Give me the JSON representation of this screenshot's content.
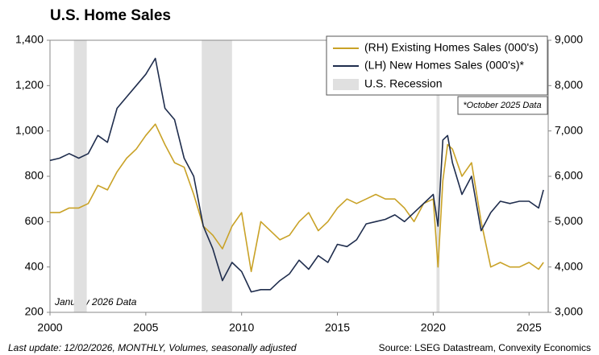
{
  "chart_data": {
    "type": "line",
    "title": "U.S. Home Sales",
    "x": [
      2000,
      2000.5,
      2001,
      2001.5,
      2002,
      2002.5,
      2003,
      2003.5,
      2004,
      2004.5,
      2005,
      2005.5,
      2006,
      2006.5,
      2007,
      2007.5,
      2008,
      2008.5,
      2009,
      2009.5,
      2010,
      2010.5,
      2011,
      2011.5,
      2012,
      2012.5,
      2013,
      2013.5,
      2014,
      2014.5,
      2015,
      2015.5,
      2016,
      2016.5,
      2017,
      2017.5,
      2018,
      2018.5,
      2019,
      2019.5,
      2020,
      2020.25,
      2020.5,
      2020.75,
      2021,
      2021.5,
      2022,
      2022.5,
      2023,
      2023.5,
      2024,
      2024.5,
      2025,
      2025.5,
      2025.75
    ],
    "series": [
      {
        "name": "(RH) Existing Homes Sales (000's)",
        "color": "#c9a227",
        "axis": "y2",
        "values": [
          5200,
          5200,
          5300,
          5300,
          5400,
          5800,
          5700,
          6100,
          6400,
          6600,
          6900,
          7150,
          6700,
          6300,
          6200,
          5600,
          4900,
          4700,
          4400,
          4900,
          5200,
          3900,
          5000,
          4800,
          4600,
          4700,
          5000,
          5200,
          4800,
          5000,
          5300,
          5500,
          5400,
          5500,
          5600,
          5500,
          5500,
          5300,
          5000,
          5400,
          5500,
          4000,
          5900,
          6700,
          6600,
          6000,
          6300,
          5000,
          4000,
          4100,
          4000,
          4000,
          4100,
          3950,
          4100
        ]
      },
      {
        "name": "(LH) New Homes Sales (000's)*",
        "color": "#1f2d4d",
        "values": [
          870,
          880,
          900,
          880,
          900,
          980,
          950,
          1100,
          1150,
          1200,
          1250,
          1320,
          1100,
          1050,
          880,
          800,
          580,
          480,
          340,
          420,
          380,
          290,
          300,
          300,
          340,
          370,
          430,
          390,
          450,
          420,
          500,
          490,
          520,
          590,
          600,
          610,
          630,
          600,
          640,
          680,
          720,
          580,
          960,
          980,
          860,
          720,
          800,
          560,
          640,
          690,
          680,
          690,
          690,
          660,
          740
        ]
      }
    ],
    "recessions": {
      "name": "U.S. Recession",
      "color": "#e0e0e0",
      "periods": [
        [
          2001.25,
          2001.92
        ],
        [
          2007.92,
          2009.5
        ],
        [
          2020.17,
          2020.33
        ]
      ]
    },
    "xlim": [
      2000,
      2026
    ],
    "xticks": [
      2000,
      2005,
      2010,
      2015,
      2020,
      2025
    ],
    "ylim": [
      200,
      1400
    ],
    "yticks": [
      200,
      400,
      600,
      800,
      {
        "value": 1000,
        "label": "1,000"
      },
      {
        "value": 1200,
        "label": "1,200"
      },
      {
        "value": 1400,
        "label": "1,400"
      }
    ],
    "y2lim": [
      3000,
      9000
    ],
    "y2ticks": [
      {
        "value": 3000,
        "label": "3,000"
      },
      {
        "value": 4000,
        "label": "4,000"
      },
      {
        "value": 5000,
        "label": "5,000"
      },
      {
        "value": 6000,
        "label": "6,000"
      },
      {
        "value": 7000,
        "label": "7,000"
      },
      {
        "value": 8000,
        "label": "8,000"
      },
      {
        "value": 9000,
        "label": "9,000"
      }
    ],
    "annotations": [
      "*October 2025 Data",
      "January 2026 Data"
    ],
    "footer_left": "Last update: 12/02/2026, MONTHLY, Volumes, seasonally adjusted",
    "footer_right": "Source: LSEG Datastream, Convexity Economics"
  }
}
